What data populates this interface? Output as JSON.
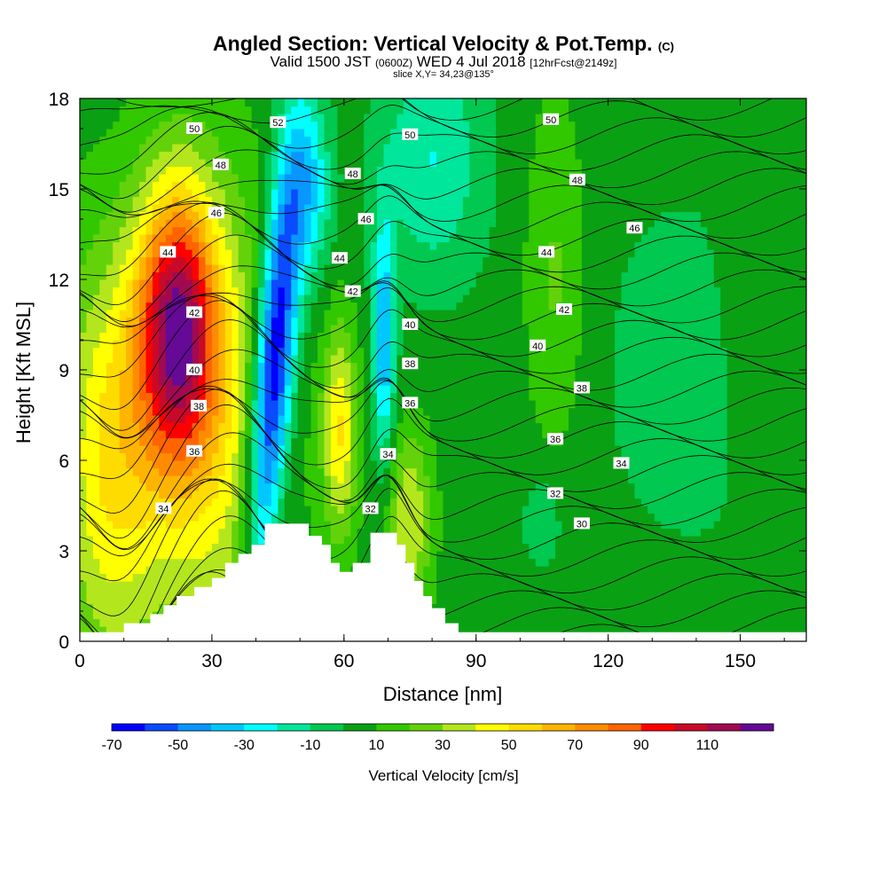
{
  "title": {
    "main": "Angled Section: Vertical Velocity & Pot.Temp.",
    "main_tag": "(C)",
    "valid_prefix": "Valid 1500 JST",
    "valid_utc": "(0600Z)",
    "valid_date": "WED 4 Jul 2018",
    "forecast": "[12hrFcst@2149z]",
    "slice": "slice X,Y= 34,23@135°"
  },
  "chart_data": {
    "type": "heatmap",
    "xlabel": "Distance [nm]",
    "ylabel": "Height [Kft MSL]",
    "xlim": [
      0,
      165
    ],
    "ylim": [
      0,
      18
    ],
    "x_ticks": [
      "0",
      "30",
      "60",
      "90",
      "120",
      "150"
    ],
    "y_ticks": [
      "0",
      "3",
      "6",
      "9",
      "12",
      "15",
      "18"
    ],
    "colorbar": {
      "title": "Vertical Velocity [cm/s]",
      "tick_labels": [
        "-70",
        "-50",
        "-30",
        "-10",
        "10",
        "30",
        "50",
        "70",
        "90",
        "110"
      ],
      "levels": [
        -70,
        -60,
        -50,
        -40,
        -30,
        -20,
        -10,
        0,
        10,
        20,
        30,
        40,
        50,
        60,
        70,
        80,
        90,
        100,
        110,
        120
      ],
      "colors": [
        "#0000ff",
        "#0a4bff",
        "#0a96ff",
        "#00c8ff",
        "#00ffff",
        "#00e69b",
        "#00c850",
        "#0aa014",
        "#32c800",
        "#64d20a",
        "#b4e61e",
        "#ffff00",
        "#ffdc00",
        "#ffb400",
        "#ff8c00",
        "#ff6400",
        "#ff0000",
        "#c80a28",
        "#a00a50",
        "#640a96"
      ]
    },
    "terrain": [
      [
        0,
        0.3
      ],
      [
        10,
        0.3
      ],
      [
        10,
        0.6
      ],
      [
        16,
        0.6
      ],
      [
        16,
        0.9
      ],
      [
        19,
        0.9
      ],
      [
        19,
        1.2
      ],
      [
        22,
        1.2
      ],
      [
        22,
        1.5
      ],
      [
        26,
        1.5
      ],
      [
        26,
        1.8
      ],
      [
        30,
        1.8
      ],
      [
        30,
        2.1
      ],
      [
        33,
        2.1
      ],
      [
        33,
        2.6
      ],
      [
        36,
        2.6
      ],
      [
        36,
        2.9
      ],
      [
        39,
        2.9
      ],
      [
        39,
        3.2
      ],
      [
        42,
        3.2
      ],
      [
        42,
        3.9
      ],
      [
        52,
        3.9
      ],
      [
        52,
        3.5
      ],
      [
        55,
        3.5
      ],
      [
        55,
        3.2
      ],
      [
        57,
        3.2
      ],
      [
        57,
        2.6
      ],
      [
        59,
        2.6
      ],
      [
        59,
        2.3
      ],
      [
        62,
        2.3
      ],
      [
        62,
        2.6
      ],
      [
        66,
        2.6
      ],
      [
        66,
        3.6
      ],
      [
        72,
        3.6
      ],
      [
        72,
        3.2
      ],
      [
        74,
        3.2
      ],
      [
        74,
        2.6
      ],
      [
        76,
        2.6
      ],
      [
        76,
        2.0
      ],
      [
        78,
        2.0
      ],
      [
        78,
        1.5
      ],
      [
        80,
        1.5
      ],
      [
        80,
        1.1
      ],
      [
        83,
        1.1
      ],
      [
        83,
        0.6
      ],
      [
        86,
        0.6
      ],
      [
        86,
        0.3
      ],
      [
        165,
        0.3
      ]
    ],
    "contour_labels": [
      {
        "text": "50",
        "x": 26,
        "y": 17.0
      },
      {
        "text": "48",
        "x": 32,
        "y": 15.8
      },
      {
        "text": "46",
        "x": 31,
        "y": 14.2
      },
      {
        "text": "44",
        "x": 20,
        "y": 12.9
      },
      {
        "text": "42",
        "x": 26,
        "y": 10.9
      },
      {
        "text": "40",
        "x": 26,
        "y": 9.0
      },
      {
        "text": "38",
        "x": 27,
        "y": 7.8
      },
      {
        "text": "36",
        "x": 26,
        "y": 6.3
      },
      {
        "text": "34",
        "x": 19,
        "y": 4.4
      },
      {
        "text": "52",
        "x": 45,
        "y": 17.2
      },
      {
        "text": "50",
        "x": 75,
        "y": 16.8
      },
      {
        "text": "48",
        "x": 62,
        "y": 15.5
      },
      {
        "text": "46",
        "x": 65,
        "y": 14.0
      },
      {
        "text": "44",
        "x": 59,
        "y": 12.7
      },
      {
        "text": "42",
        "x": 62,
        "y": 11.6
      },
      {
        "text": "40",
        "x": 75,
        "y": 10.5
      },
      {
        "text": "38",
        "x": 75,
        "y": 9.2
      },
      {
        "text": "36",
        "x": 75,
        "y": 7.9
      },
      {
        "text": "34",
        "x": 70,
        "y": 6.2
      },
      {
        "text": "32",
        "x": 66,
        "y": 4.4
      },
      {
        "text": "50",
        "x": 107,
        "y": 17.3
      },
      {
        "text": "48",
        "x": 113,
        "y": 15.3
      },
      {
        "text": "46",
        "x": 126,
        "y": 13.7
      },
      {
        "text": "44",
        "x": 106,
        "y": 12.9
      },
      {
        "text": "42",
        "x": 110,
        "y": 11.0
      },
      {
        "text": "40",
        "x": 104,
        "y": 9.8
      },
      {
        "text": "38",
        "x": 114,
        "y": 8.4
      },
      {
        "text": "36",
        "x": 108,
        "y": 6.7
      },
      {
        "text": "34",
        "x": 123,
        "y": 5.9
      },
      {
        "text": "32",
        "x": 108,
        "y": 4.9
      },
      {
        "text": "30",
        "x": 114,
        "y": 3.9
      }
    ]
  }
}
